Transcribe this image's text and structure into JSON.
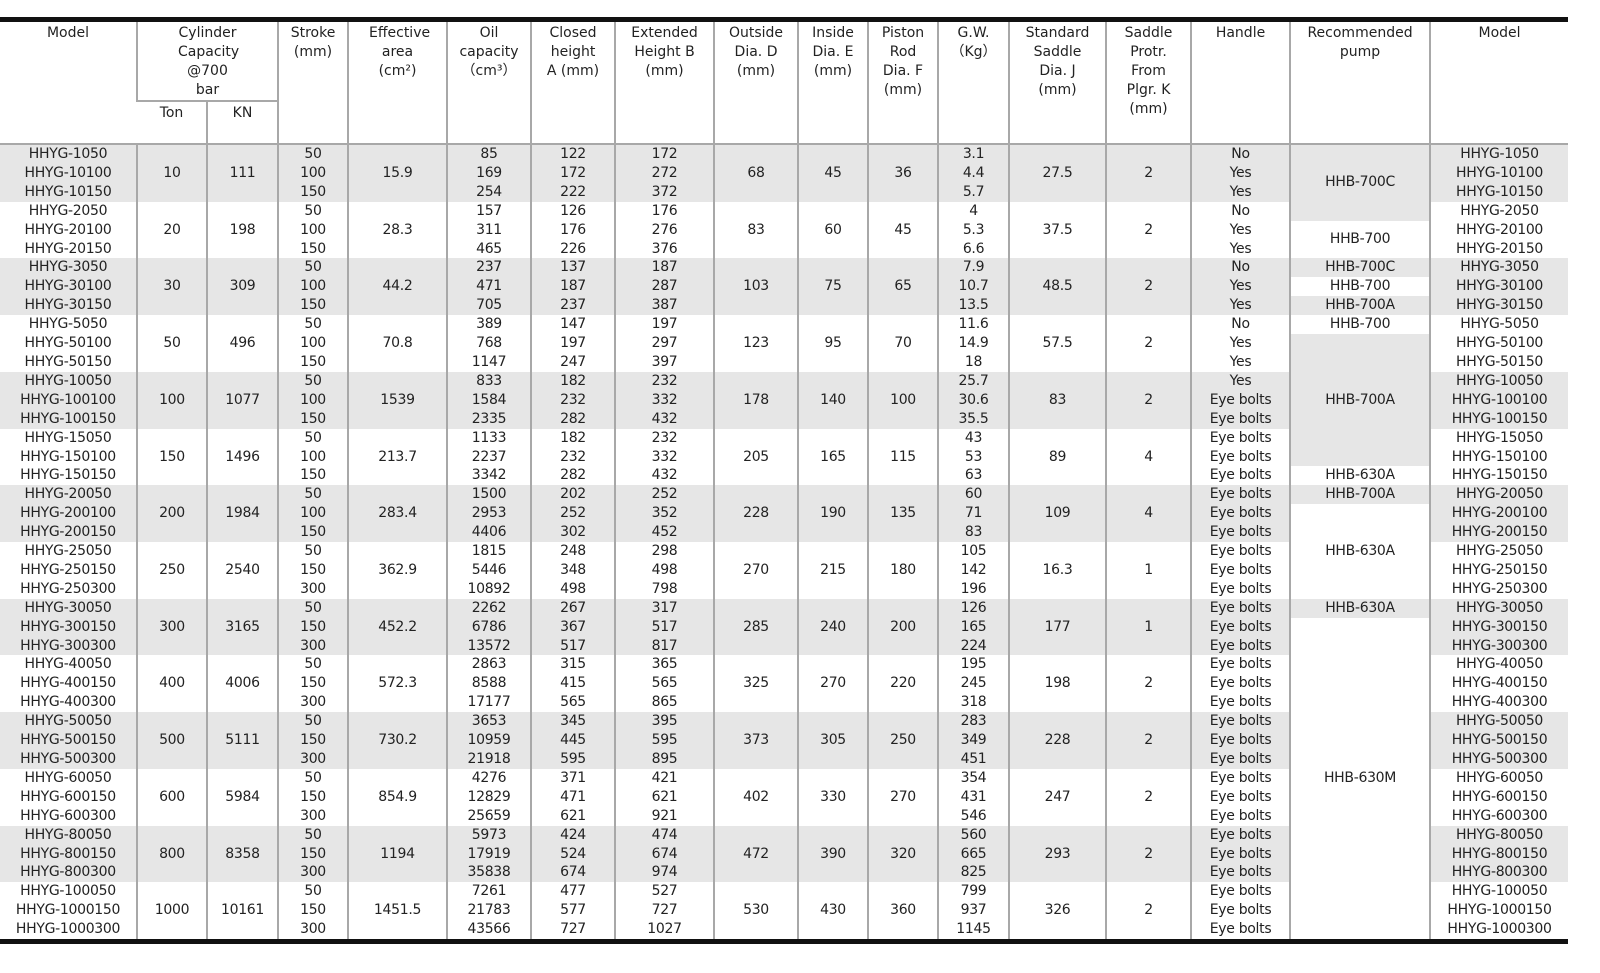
{
  "headers": {
    "model": "Model",
    "capacity": "Cylinder Capacity @700 bar",
    "ton": "Ton",
    "kn": "KN",
    "stroke": "Stroke (mm)",
    "area": "Effective area (cm²)",
    "oil": "Oil capacity （cm³）",
    "closed": "Closed height A (mm)",
    "extended": "Extended Height B (mm)",
    "outside": "Outside Dia. D (mm)",
    "inside": "Inside Dia. E (mm)",
    "rod": "Piston Rod Dia. F (mm)",
    "gw": "G.W. （Kg）",
    "saddle": "Standard Saddle Dia. J (mm)",
    "protr": "Saddle Protr. From Plgr. K (mm)",
    "handle": "Handle",
    "pump": "Recommended pump",
    "model2": "Model"
  },
  "colors": {
    "shade": "#e6e6e6",
    "grid": "#a8a8a8",
    "rule": "#111111"
  },
  "groups": [
    {
      "models": [
        "HHYG-1050",
        "HHYG-10100",
        "HHYG-10150"
      ],
      "ton": "10",
      "kn": "111",
      "stroke": [
        "50",
        "100",
        "150"
      ],
      "area": "15.9",
      "oil": [
        "85",
        "169",
        "254"
      ],
      "a": [
        "122",
        "172",
        "222"
      ],
      "b": [
        "172",
        "272",
        "372"
      ],
      "d": "68",
      "e": "45",
      "f": "36",
      "gw": [
        "3.1",
        "4.4",
        "5.7"
      ],
      "j": "27.5",
      "k": "2",
      "handle": [
        "No",
        "Yes",
        "Yes"
      ]
    },
    {
      "models": [
        "HHYG-2050",
        "HHYG-20100",
        "HHYG-20150"
      ],
      "ton": "20",
      "kn": "198",
      "stroke": [
        "50",
        "100",
        "150"
      ],
      "area": "28.3",
      "oil": [
        "157",
        "311",
        "465"
      ],
      "a": [
        "126",
        "176",
        "226"
      ],
      "b": [
        "176",
        "276",
        "376"
      ],
      "d": "83",
      "e": "60",
      "f": "45",
      "gw": [
        "4",
        "5.3",
        "6.6"
      ],
      "j": "37.5",
      "k": "2",
      "handle": [
        "No",
        "Yes",
        "Yes"
      ]
    },
    {
      "models": [
        "HHYG-3050",
        "HHYG-30100",
        "HHYG-30150"
      ],
      "ton": "30",
      "kn": "309",
      "stroke": [
        "50",
        "100",
        "150"
      ],
      "area": "44.2",
      "oil": [
        "237",
        "471",
        "705"
      ],
      "a": [
        "137",
        "187",
        "237"
      ],
      "b": [
        "187",
        "287",
        "387"
      ],
      "d": "103",
      "e": "75",
      "f": "65",
      "gw": [
        "7.9",
        "10.7",
        "13.5"
      ],
      "j": "48.5",
      "k": "2",
      "handle": [
        "No",
        "Yes",
        "Yes"
      ]
    },
    {
      "models": [
        "HHYG-5050",
        "HHYG-50100",
        "HHYG-50150"
      ],
      "ton": "50",
      "kn": "496",
      "stroke": [
        "50",
        "100",
        "150"
      ],
      "area": "70.8",
      "oil": [
        "389",
        "768",
        "1147"
      ],
      "a": [
        "147",
        "197",
        "247"
      ],
      "b": [
        "197",
        "297",
        "397"
      ],
      "d": "123",
      "e": "95",
      "f": "70",
      "gw": [
        "11.6",
        "14.9",
        "18"
      ],
      "j": "57.5",
      "k": "2",
      "handle": [
        "No",
        "Yes",
        "Yes"
      ]
    },
    {
      "models": [
        "HHYG-10050",
        "HHYG-100100",
        "HHYG-100150"
      ],
      "ton": "100",
      "kn": "1077",
      "stroke": [
        "50",
        "100",
        "150"
      ],
      "area": "1539",
      "oil": [
        "833",
        "1584",
        "2335"
      ],
      "a": [
        "182",
        "232",
        "282"
      ],
      "b": [
        "232",
        "332",
        "432"
      ],
      "d": "178",
      "e": "140",
      "f": "100",
      "gw": [
        "25.7",
        "30.6",
        "35.5"
      ],
      "j": "83",
      "k": "2",
      "handle": [
        "Yes",
        "Eye bolts",
        "Eye bolts"
      ]
    },
    {
      "models": [
        "HHYG-15050",
        "HHYG-150100",
        "HHYG-150150"
      ],
      "ton": "150",
      "kn": "1496",
      "stroke": [
        "50",
        "100",
        "150"
      ],
      "area": "213.7",
      "oil": [
        "1133",
        "2237",
        "3342"
      ],
      "a": [
        "182",
        "232",
        "282"
      ],
      "b": [
        "232",
        "332",
        "432"
      ],
      "d": "205",
      "e": "165",
      "f": "115",
      "gw": [
        "43",
        "53",
        "63"
      ],
      "j": "89",
      "k": "4",
      "handle": [
        "Eye bolts",
        "Eye bolts",
        "Eye bolts"
      ]
    },
    {
      "models": [
        "HHYG-20050",
        "HHYG-200100",
        "HHYG-200150"
      ],
      "ton": "200",
      "kn": "1984",
      "stroke": [
        "50",
        "100",
        "150"
      ],
      "area": "283.4",
      "oil": [
        "1500",
        "2953",
        "4406"
      ],
      "a": [
        "202",
        "252",
        "302"
      ],
      "b": [
        "252",
        "352",
        "452"
      ],
      "d": "228",
      "e": "190",
      "f": "135",
      "gw": [
        "60",
        "71",
        "83"
      ],
      "j": "109",
      "k": "4",
      "handle": [
        "Eye bolts",
        "Eye bolts",
        "Eye bolts"
      ]
    },
    {
      "models": [
        "HHYG-25050",
        "HHYG-250150",
        "HHYG-250300"
      ],
      "ton": "250",
      "kn": "2540",
      "stroke": [
        "50",
        "150",
        "300"
      ],
      "area": "362.9",
      "oil": [
        "1815",
        "5446",
        "10892"
      ],
      "a": [
        "248",
        "348",
        "498"
      ],
      "b": [
        "298",
        "498",
        "798"
      ],
      "d": "270",
      "e": "215",
      "f": "180",
      "gw": [
        "105",
        "142",
        "196"
      ],
      "j": "16.3",
      "k": "1",
      "handle": [
        "Eye bolts",
        "Eye bolts",
        "Eye bolts"
      ]
    },
    {
      "models": [
        "HHYG-30050",
        "HHYG-300150",
        "HHYG-300300"
      ],
      "ton": "300",
      "kn": "3165",
      "stroke": [
        "50",
        "150",
        "300"
      ],
      "area": "452.2",
      "oil": [
        "2262",
        "6786",
        "13572"
      ],
      "a": [
        "267",
        "367",
        "517"
      ],
      "b": [
        "317",
        "517",
        "817"
      ],
      "d": "285",
      "e": "240",
      "f": "200",
      "gw": [
        "126",
        "165",
        "224"
      ],
      "j": "177",
      "k": "1",
      "handle": [
        "Eye bolts",
        "Eye bolts",
        "Eye bolts"
      ]
    },
    {
      "models": [
        "HHYG-40050",
        "HHYG-400150",
        "HHYG-400300"
      ],
      "ton": "400",
      "kn": "4006",
      "stroke": [
        "50",
        "150",
        "300"
      ],
      "area": "572.3",
      "oil": [
        "2863",
        "8588",
        "17177"
      ],
      "a": [
        "315",
        "415",
        "565"
      ],
      "b": [
        "365",
        "565",
        "865"
      ],
      "d": "325",
      "e": "270",
      "f": "220",
      "gw": [
        "195",
        "245",
        "318"
      ],
      "j": "198",
      "k": "2",
      "handle": [
        "Eye bolts",
        "Eye bolts",
        "Eye bolts"
      ]
    },
    {
      "models": [
        "HHYG-50050",
        "HHYG-500150",
        "HHYG-500300"
      ],
      "ton": "500",
      "kn": "5111",
      "stroke": [
        "50",
        "150",
        "300"
      ],
      "area": "730.2",
      "oil": [
        "3653",
        "10959",
        "21918"
      ],
      "a": [
        "345",
        "445",
        "595"
      ],
      "b": [
        "395",
        "595",
        "895"
      ],
      "d": "373",
      "e": "305",
      "f": "250",
      "gw": [
        "283",
        "349",
        "451"
      ],
      "j": "228",
      "k": "2",
      "handle": [
        "Eye bolts",
        "Eye bolts",
        "Eye bolts"
      ]
    },
    {
      "models": [
        "HHYG-60050",
        "HHYG-600150",
        "HHYG-600300"
      ],
      "ton": "600",
      "kn": "5984",
      "stroke": [
        "50",
        "150",
        "300"
      ],
      "area": "854.9",
      "oil": [
        "4276",
        "12829",
        "25659"
      ],
      "a": [
        "371",
        "471",
        "621"
      ],
      "b": [
        "421",
        "621",
        "921"
      ],
      "d": "402",
      "e": "330",
      "f": "270",
      "gw": [
        "354",
        "431",
        "546"
      ],
      "j": "247",
      "k": "2",
      "handle": [
        "Eye bolts",
        "Eye bolts",
        "Eye bolts"
      ]
    },
    {
      "models": [
        "HHYG-80050",
        "HHYG-800150",
        "HHYG-800300"
      ],
      "ton": "800",
      "kn": "8358",
      "stroke": [
        "50",
        "150",
        "300"
      ],
      "area": "1194",
      "oil": [
        "5973",
        "17919",
        "35838"
      ],
      "a": [
        "424",
        "524",
        "674"
      ],
      "b": [
        "474",
        "674",
        "974"
      ],
      "d": "472",
      "e": "390",
      "f": "320",
      "gw": [
        "560",
        "665",
        "825"
      ],
      "j": "293",
      "k": "2",
      "handle": [
        "Eye bolts",
        "Eye bolts",
        "Eye bolts"
      ]
    },
    {
      "models": [
        "HHYG-100050",
        "HHYG-1000150",
        "HHYG-1000300"
      ],
      "ton": "1000",
      "kn": "10161",
      "stroke": [
        "50",
        "150",
        "300"
      ],
      "area": "1451.5",
      "oil": [
        "7261",
        "21783",
        "43566"
      ],
      "a": [
        "477",
        "577",
        "727"
      ],
      "b": [
        "527",
        "727",
        "1027"
      ],
      "d": "530",
      "e": "430",
      "f": "360",
      "gw": [
        "799",
        "937",
        "1145"
      ],
      "j": "326",
      "k": "2",
      "handle": [
        "Eye bolts",
        "Eye bolts",
        "Eye bolts"
      ]
    }
  ],
  "pumps": [
    {
      "label": "HHB-700C",
      "rows": 4,
      "shaded": true
    },
    {
      "label": "HHB-700",
      "rows": 2,
      "shaded": false
    },
    {
      "label": "HHB-700C",
      "rows": 1,
      "shaded": true
    },
    {
      "label": "HHB-700",
      "rows": 1,
      "shaded": false
    },
    {
      "label": "HHB-700A",
      "rows": 1,
      "shaded": true
    },
    {
      "label": "HHB-700",
      "rows": 1,
      "shaded": false
    },
    {
      "label": "HHB-700A",
      "rows": 7,
      "shaded": true
    },
    {
      "label": "HHB-630A",
      "rows": 1,
      "shaded": false
    },
    {
      "label": "HHB-700A",
      "rows": 1,
      "shaded": true
    },
    {
      "label": "HHB-630A",
      "rows": 5,
      "shaded": false
    },
    {
      "label": "HHB-630A",
      "rows": 1,
      "shaded": true
    },
    {
      "label": "HHB-630M",
      "rows": 17,
      "shaded": false
    }
  ]
}
